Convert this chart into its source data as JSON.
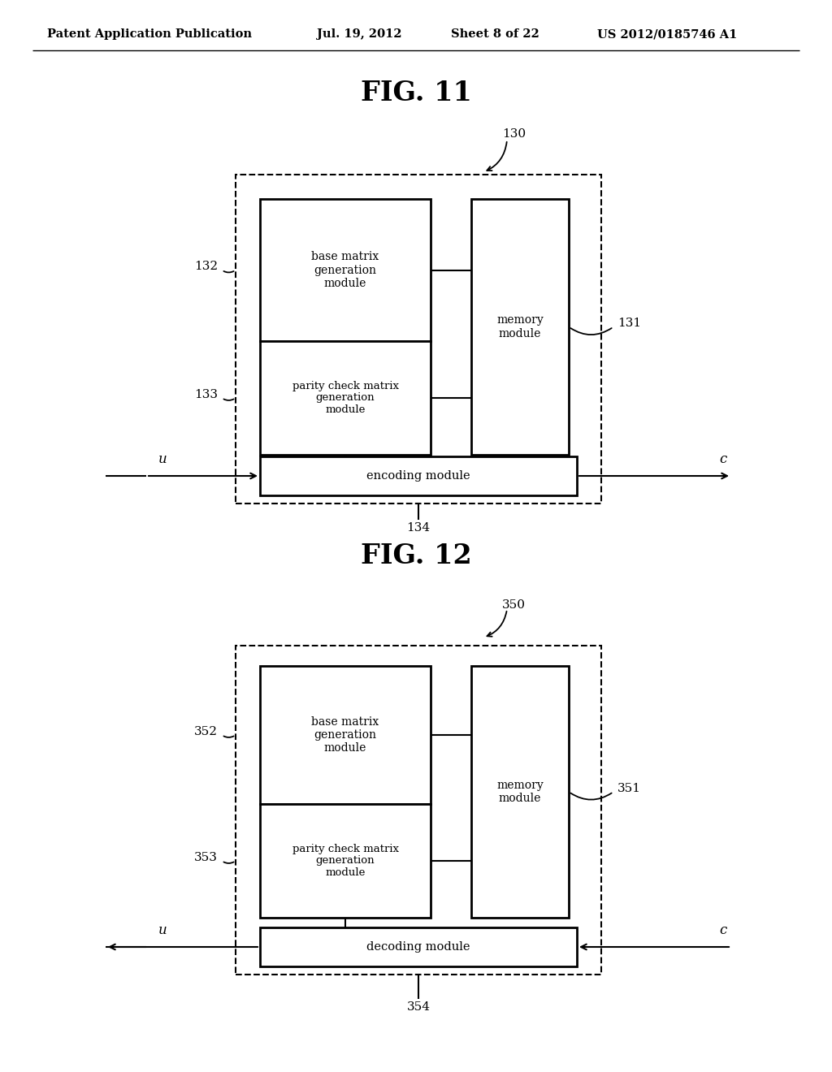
{
  "background_color": "#ffffff",
  "header_text": "Patent Application Publication",
  "header_date": "Jul. 19, 2012",
  "header_sheet": "Sheet 8 of 22",
  "header_patent": "US 2012/0185746 A1",
  "fig11_title": "FIG. 11",
  "fig12_title": "FIG. 12",
  "fig11": {
    "outer_box_label": "130",
    "base_matrix_label": "132",
    "parity_check_label": "133",
    "encoding_label": "134",
    "memory_label": "131",
    "base_matrix_text": "base matrix\ngeneration\nmodule",
    "parity_check_text": "parity check matrix\ngeneration\nmodule",
    "encoding_text": "encoding module",
    "memory_text": "memory\nmodule",
    "input_label": "u",
    "output_label": "c"
  },
  "fig12": {
    "outer_box_label": "350",
    "base_matrix_label": "352",
    "parity_check_label": "353",
    "decoding_label": "354",
    "memory_label": "351",
    "base_matrix_text": "base matrix\ngeneration\nmodule",
    "parity_check_text": "parity check matrix\ngeneration\nmodule",
    "decoding_text": "decoding module",
    "memory_text": "memory\nmodule",
    "input_label": "u",
    "output_label": "c"
  }
}
